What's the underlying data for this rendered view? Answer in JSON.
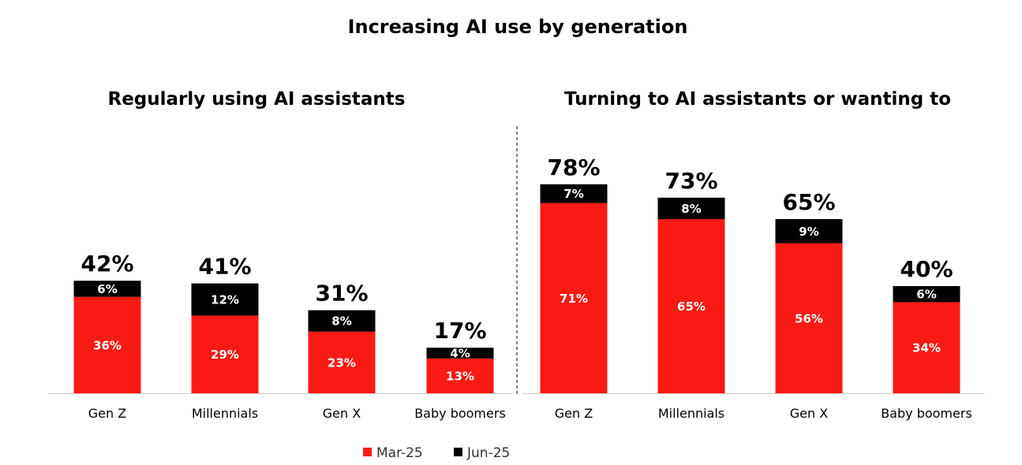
{
  "title": "Increasing AI use by generation",
  "colors": {
    "mar": "#fa1a14",
    "jun": "#000000",
    "axis": "#cccccc",
    "divider": "#333333"
  },
  "legend": [
    {
      "name": "Mar-25",
      "color": "#fa1a14"
    },
    {
      "name": "Jun-25",
      "color": "#000000"
    }
  ],
  "chart_data": [
    {
      "type": "bar",
      "stacked": true,
      "title": "Regularly using AI assistants",
      "categories": [
        "Gen Z",
        "Millennials",
        "Gen X",
        "Baby boomers"
      ],
      "series": [
        {
          "name": "Mar-25",
          "values": [
            36,
            29,
            23,
            13
          ],
          "labels": [
            "36%",
            "29%",
            "23%",
            "13%"
          ]
        },
        {
          "name": "Jun-25",
          "values": [
            6,
            12,
            8,
            4
          ],
          "labels": [
            "6%",
            "12%",
            "8%",
            "4%"
          ]
        }
      ],
      "totals": [
        "42%",
        "41%",
        "31%",
        "17%"
      ],
      "ylim": [
        0,
        80
      ],
      "grid": false,
      "legend": "bottom"
    },
    {
      "type": "bar",
      "stacked": true,
      "title": "Turning to AI assistants or wanting to",
      "categories": [
        "Gen Z",
        "Millennials",
        "Gen X",
        "Baby boomers"
      ],
      "series": [
        {
          "name": "Mar-25",
          "values": [
            71,
            65,
            56,
            34
          ],
          "labels": [
            "71%",
            "65%",
            "56%",
            "34%"
          ]
        },
        {
          "name": "Jun-25",
          "values": [
            7,
            8,
            9,
            6
          ],
          "labels": [
            "7%",
            "8%",
            "9%",
            "6%"
          ]
        }
      ],
      "totals": [
        "78%",
        "73%",
        "65%",
        "40%"
      ],
      "ylim": [
        0,
        80
      ],
      "grid": false,
      "legend": "bottom"
    }
  ]
}
